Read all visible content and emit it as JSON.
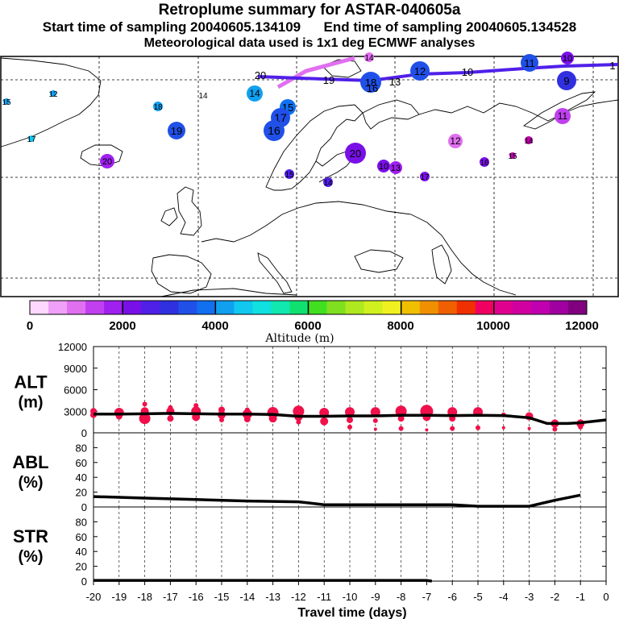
{
  "header": {
    "title": "Retroplume summary for ASTAR-040605a",
    "start_label": "Start time of sampling 20040605.134109",
    "end_label": "End time of sampling 20040605.134528",
    "met_label": "Meteorological data used is 1x1 deg ECMWF analyses"
  },
  "colorbar": {
    "title": "Altitude (m)",
    "ticks": [
      "0",
      "2000",
      "4000",
      "6000",
      "8000",
      "10000",
      "12000"
    ],
    "colors": [
      "#ffd8ff",
      "#f0a0f8",
      "#e070f0",
      "#c040f0",
      "#a020f0",
      "#7a10e8",
      "#5020e8",
      "#3030e0",
      "#2050e8",
      "#1070f0",
      "#10a0f0",
      "#10c8f0",
      "#10e0e0",
      "#10e8b0",
      "#10e070",
      "#40e020",
      "#80e020",
      "#b0e820",
      "#d0f020",
      "#f0f020",
      "#f0c000",
      "#f09000",
      "#f06000",
      "#f03000",
      "#f00060",
      "#e00090",
      "#d000a0",
      "#c000b0",
      "#a000a0",
      "#800080"
    ]
  },
  "map": {
    "markers": [
      {
        "label": "14",
        "color": "#e070f0",
        "size": "small"
      },
      {
        "label": "10",
        "color": "#7a10e8",
        "size": "small"
      },
      {
        "label": "20",
        "color": "#5020e8",
        "size": "small"
      },
      {
        "label": "19",
        "color": "#5020e8",
        "size": "small"
      },
      {
        "label": "12",
        "color": "#2050e8",
        "size": "large"
      },
      {
        "label": "11",
        "color": "#2050e8",
        "size": "medium"
      },
      {
        "label": "10",
        "color": "#a020f0",
        "size": "medium"
      },
      {
        "label": "9",
        "color": "#3030e0",
        "size": "large"
      },
      {
        "label": "1",
        "color": "#5020e8",
        "size": "small"
      },
      {
        "label": "18",
        "color": "#2050e8",
        "size": "large"
      },
      {
        "label": "13",
        "color": "#2050e8",
        "size": "small"
      },
      {
        "label": "16",
        "color": "#2050e8",
        "size": "small"
      },
      {
        "label": "14",
        "color": "#10a0f0",
        "size": "medium"
      },
      {
        "label": "15",
        "color": "#1070f0",
        "size": "medium"
      },
      {
        "label": "17",
        "color": "#2050e8",
        "size": "large"
      },
      {
        "label": "16",
        "color": "#2050e8",
        "size": "large"
      },
      {
        "label": "18",
        "color": "#10a0f0",
        "size": "small"
      },
      {
        "label": "19",
        "color": "#2050e8",
        "size": "medium"
      },
      {
        "label": "12",
        "color": "#10a0f0",
        "size": "small"
      },
      {
        "label": "15",
        "color": "#10a0f0",
        "size": "small"
      },
      {
        "label": "14",
        "color": "#888888",
        "size": "text"
      },
      {
        "label": "17",
        "color": "#10c8f0",
        "size": "small"
      },
      {
        "label": "20",
        "color": "#a020f0",
        "size": "medium"
      },
      {
        "label": "20",
        "color": "#7a10e8",
        "size": "large"
      },
      {
        "label": "12",
        "color": "#e070f0",
        "size": "medium"
      },
      {
        "label": "11",
        "color": "#c040f0",
        "size": "medium"
      },
      {
        "label": "14",
        "color": "#c000b0",
        "size": "small"
      },
      {
        "label": "16",
        "color": "#7a10e8",
        "size": "small"
      },
      {
        "label": "15",
        "color": "#c000b0",
        "size": "small"
      },
      {
        "label": "10",
        "color": "#7a10e8",
        "size": "small"
      },
      {
        "label": "13",
        "color": "#a020f0",
        "size": "small"
      },
      {
        "label": "17",
        "color": "#7a10e8",
        "size": "small"
      },
      {
        "label": "15",
        "color": "#5020e8",
        "size": "small"
      },
      {
        "label": "14",
        "color": "#5020e8",
        "size": "small"
      }
    ]
  },
  "chart_data": {
    "type": "line",
    "xlabel": "Travel time (days)",
    "x_ticks": [
      -20,
      -19,
      -18,
      -17,
      -16,
      -15,
      -14,
      -13,
      -12,
      -11,
      -10,
      -9,
      -8,
      -7,
      -6,
      -5,
      -4,
      -3,
      -2,
      -1,
      0
    ],
    "xlim": [
      -20,
      0
    ],
    "panels": [
      {
        "name": "ALT",
        "ylabel_top": "ALT",
        "ylabel_bottom": "(m)",
        "ylim": [
          0,
          12000
        ],
        "y_ticks": [
          "12000",
          "9000",
          "6000",
          "3000",
          "0"
        ],
        "x": [
          -20,
          -19,
          -18,
          -17,
          -16,
          -15,
          -14,
          -13,
          -12,
          -11,
          -10,
          -9,
          -8,
          -7,
          -6,
          -5,
          -4,
          -3,
          -2.3,
          -1.5,
          -1,
          0
        ],
        "values": [
          2600,
          2600,
          2650,
          2700,
          2650,
          2600,
          2600,
          2550,
          2300,
          2300,
          2350,
          2350,
          2450,
          2450,
          2400,
          2450,
          2400,
          2100,
          1300,
          1300,
          1400,
          1800
        ],
        "points": [
          {
            "x": -20,
            "y": 3000,
            "s": 4
          },
          {
            "x": -20,
            "y": 2500,
            "s": 4
          },
          {
            "x": -19,
            "y": 2800,
            "s": 6
          },
          {
            "x": -19,
            "y": 2300,
            "s": 4
          },
          {
            "x": -18,
            "y": 2000,
            "s": 7
          },
          {
            "x": -18,
            "y": 3000,
            "s": 5
          },
          {
            "x": -18,
            "y": 4000,
            "s": 3
          },
          {
            "x": -17,
            "y": 3000,
            "s": 5
          },
          {
            "x": -17,
            "y": 2000,
            "s": 4
          },
          {
            "x": -17,
            "y": 3500,
            "s": 3
          },
          {
            "x": -16,
            "y": 2200,
            "s": 5
          },
          {
            "x": -16,
            "y": 3000,
            "s": 6
          },
          {
            "x": -16,
            "y": 3800,
            "s": 3
          },
          {
            "x": -15,
            "y": 2500,
            "s": 5
          },
          {
            "x": -15,
            "y": 3200,
            "s": 4
          },
          {
            "x": -15,
            "y": 1800,
            "s": 3
          },
          {
            "x": -14,
            "y": 2600,
            "s": 6
          },
          {
            "x": -14,
            "y": 1900,
            "s": 4
          },
          {
            "x": -14,
            "y": 3200,
            "s": 3
          },
          {
            "x": -13,
            "y": 2800,
            "s": 7
          },
          {
            "x": -13,
            "y": 2000,
            "s": 5
          },
          {
            "x": -12,
            "y": 3000,
            "s": 7
          },
          {
            "x": -12,
            "y": 2200,
            "s": 5
          },
          {
            "x": -12,
            "y": 1500,
            "s": 3
          },
          {
            "x": -11,
            "y": 2800,
            "s": 6
          },
          {
            "x": -11,
            "y": 1600,
            "s": 5
          },
          {
            "x": -10,
            "y": 2900,
            "s": 6
          },
          {
            "x": -10,
            "y": 1800,
            "s": 4
          },
          {
            "x": -10,
            "y": 800,
            "s": 3
          },
          {
            "x": -9,
            "y": 2900,
            "s": 6
          },
          {
            "x": -9,
            "y": 1700,
            "s": 3
          },
          {
            "x": -9,
            "y": 500,
            "s": 2
          },
          {
            "x": -8,
            "y": 3000,
            "s": 7
          },
          {
            "x": -8,
            "y": 2000,
            "s": 4
          },
          {
            "x": -8,
            "y": 600,
            "s": 3
          },
          {
            "x": -7,
            "y": 3000,
            "s": 8
          },
          {
            "x": -7,
            "y": 2200,
            "s": 5
          },
          {
            "x": -7,
            "y": 400,
            "s": 2
          },
          {
            "x": -6,
            "y": 2900,
            "s": 6
          },
          {
            "x": -6,
            "y": 2000,
            "s": 4
          },
          {
            "x": -6,
            "y": 600,
            "s": 3
          },
          {
            "x": -5,
            "y": 2900,
            "s": 6
          },
          {
            "x": -5,
            "y": 700,
            "s": 3
          },
          {
            "x": -4,
            "y": 2500,
            "s": 3
          },
          {
            "x": -4,
            "y": 700,
            "s": 2
          },
          {
            "x": -3,
            "y": 2300,
            "s": 5
          },
          {
            "x": -3,
            "y": 600,
            "s": 2
          },
          {
            "x": -2,
            "y": 1300,
            "s": 5
          },
          {
            "x": -2,
            "y": 500,
            "s": 3
          },
          {
            "x": -1,
            "y": 1300,
            "s": 5
          },
          {
            "x": -1,
            "y": 800,
            "s": 3
          }
        ]
      },
      {
        "name": "ABL",
        "ylabel_top": "ABL",
        "ylabel_bottom": "(%)",
        "ylim": [
          0,
          100
        ],
        "y_ticks": [
          "80",
          "60",
          "40",
          "20",
          "0"
        ],
        "x": [
          -20,
          -18,
          -16,
          -14,
          -12,
          -11,
          -10,
          -8,
          -6,
          -5,
          -4,
          -3,
          -2,
          -1
        ],
        "values": [
          14,
          12,
          10,
          8,
          7,
          3,
          3,
          3,
          3,
          1,
          1,
          1,
          9,
          16
        ]
      },
      {
        "name": "STR",
        "ylabel_top": "STR",
        "ylabel_bottom": "(%)",
        "ylim": [
          0,
          100
        ],
        "y_ticks": [
          "80",
          "60",
          "40",
          "20",
          "0"
        ],
        "x": [
          -20,
          -16,
          -12,
          -9,
          -7,
          -6.8
        ],
        "values": [
          1,
          1,
          1,
          1,
          1,
          0
        ]
      }
    ]
  }
}
